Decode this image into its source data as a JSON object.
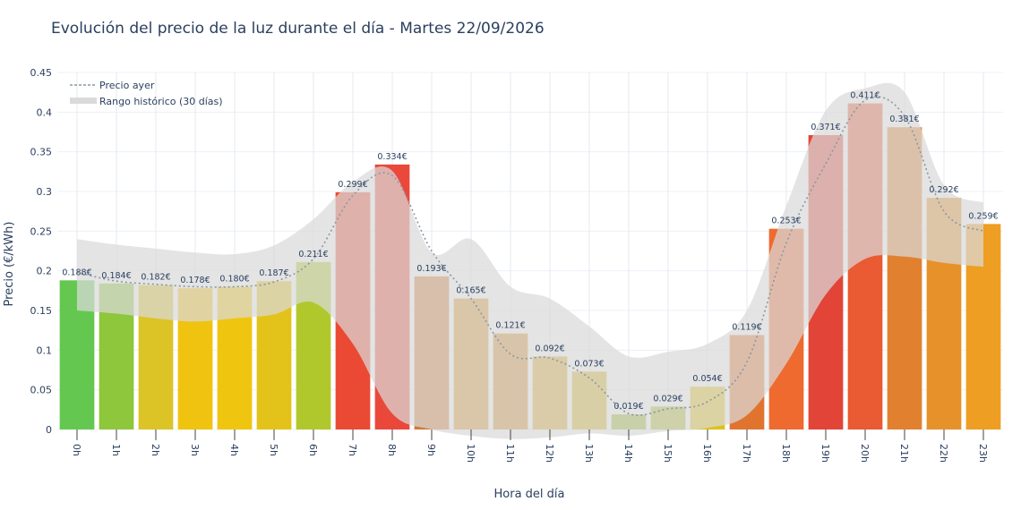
{
  "chart_data": {
    "type": "bar",
    "title": "Evolución del precio de la luz durante el día - Martes 22/09/2026",
    "xlabel": "Hora del día",
    "ylabel": "Precio (€/kWh)",
    "ylim": [
      0,
      0.45
    ],
    "yticks": [
      0,
      0.05,
      0.1,
      0.15,
      0.2,
      0.25,
      0.3,
      0.35,
      0.4,
      0.45
    ],
    "ytick_labels": [
      "0",
      "0.05",
      "0.1",
      "0.15",
      "0.2",
      "0.25",
      "0.3",
      "0.35",
      "0.4",
      "0.45"
    ],
    "categories": [
      "0h",
      "1h",
      "2h",
      "3h",
      "4h",
      "5h",
      "6h",
      "7h",
      "8h",
      "9h",
      "10h",
      "11h",
      "12h",
      "13h",
      "14h",
      "15h",
      "16h",
      "17h",
      "18h",
      "19h",
      "20h",
      "21h",
      "22h",
      "23h"
    ],
    "values": [
      0.188,
      0.184,
      0.182,
      0.178,
      0.18,
      0.187,
      0.211,
      0.299,
      0.334,
      0.193,
      0.165,
      0.121,
      0.092,
      0.073,
      0.019,
      0.029,
      0.054,
      0.119,
      0.253,
      0.371,
      0.411,
      0.381,
      0.292,
      0.259
    ],
    "value_labels": [
      "0.188€",
      "0.184€",
      "0.182€",
      "0.178€",
      "0.180€",
      "0.187€",
      "0.211€",
      "0.299€",
      "0.334€",
      "0.193€",
      "0.165€",
      "0.121€",
      "0.092€",
      "0.073€",
      "0.019€",
      "0.029€",
      "0.054€",
      "0.119€",
      "0.253€",
      "0.371€",
      "0.411€",
      "0.381€",
      "0.292€",
      "0.259€"
    ],
    "bar_colors": [
      "#64c850",
      "#8ec63c",
      "#dcc326",
      "#efc30f",
      "#f0c50f",
      "#e3c31a",
      "#b1c82d",
      "#ea4a34",
      "#e9483b",
      "#d07a38",
      "#d9962c",
      "#d3902d",
      "#d9a82a",
      "#d6b527",
      "#9cb82d",
      "#afbb2c",
      "#e0c11c",
      "#e0742f",
      "#ee6a2f",
      "#e24437",
      "#ea5a33",
      "#e1812f",
      "#e7912a",
      "#ee9e22"
    ],
    "series": [
      {
        "name": "Precio ayer",
        "style": "dotted",
        "color": "#8a98a2",
        "values": [
          0.198,
          0.187,
          0.183,
          0.18,
          0.18,
          0.186,
          0.215,
          0.295,
          0.32,
          0.225,
          0.165,
          0.095,
          0.09,
          0.065,
          0.02,
          0.026,
          0.035,
          0.085,
          0.235,
          0.335,
          0.415,
          0.395,
          0.275,
          0.25
        ]
      },
      {
        "name": "Rango histórico (30 días)",
        "style": "band",
        "color": "#dadada",
        "upper": [
          0.24,
          0.233,
          0.228,
          0.223,
          0.221,
          0.232,
          0.265,
          0.312,
          0.326,
          0.223,
          0.24,
          0.18,
          0.165,
          0.13,
          0.092,
          0.098,
          0.108,
          0.15,
          0.282,
          0.402,
          0.43,
          0.425,
          0.308,
          0.286
        ],
        "lower": [
          0.15,
          0.146,
          0.14,
          0.136,
          0.14,
          0.145,
          0.16,
          0.108,
          0.02,
          0.0,
          -0.008,
          -0.012,
          -0.01,
          -0.005,
          -0.008,
          -0.002,
          0.002,
          0.018,
          0.083,
          0.17,
          0.215,
          0.218,
          0.21,
          0.205
        ]
      }
    ],
    "legend_position": "top-left",
    "grid": true
  }
}
